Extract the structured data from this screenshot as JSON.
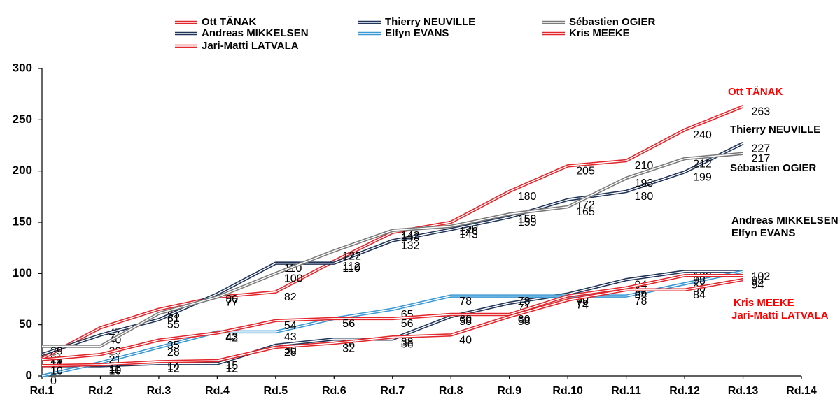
{
  "chart_data": {
    "type": "line",
    "categories": [
      "Rd.1",
      "Rd.2",
      "Rd.3",
      "Rd.4",
      "Rd.5",
      "Rd.6",
      "Rd.7",
      "Rd.8",
      "Rd.9",
      "Rd.10",
      "Rd.11",
      "Rd.12",
      "Rd.13",
      "Rd.14"
    ],
    "ylim": [
      0,
      300
    ],
    "yticks": [
      0,
      50,
      100,
      150,
      200,
      250,
      300
    ],
    "series": [
      {
        "name": "Ott TÄNAK",
        "color": "#e3262b",
        "values": [
          17,
          47,
          65,
          77,
          82,
          112,
          140,
          150,
          180,
          205,
          210,
          240,
          263,
          null
        ]
      },
      {
        "name": "Thierry NEUVILLE",
        "color": "#1f3458",
        "values": [
          21,
          40,
          55,
          80,
          110,
          110,
          132,
          143,
          155,
          172,
          180,
          199,
          227,
          null
        ]
      },
      {
        "name": "Sébastien OGIER",
        "color": "#7a7a7a",
        "values": [
          29,
          29,
          61,
          77,
          100,
          122,
          142,
          146,
          158,
          165,
          193,
          212,
          217,
          null
        ]
      },
      {
        "name": "Andreas MIKKELSEN",
        "color": "#1f3458",
        "values": [
          10,
          10,
          12,
          12,
          30,
          36,
          36,
          58,
          71,
          80,
          94,
          102,
          102,
          null
        ]
      },
      {
        "name": "Elfyn EVANS",
        "color": "#3a98d4",
        "values": [
          0,
          13,
          28,
          43,
          43,
          56,
          65,
          78,
          78,
          78,
          78,
          90,
          102,
          null
        ]
      },
      {
        "name": "Kris MEEKE",
        "color": "#e3262b",
        "values": [
          16,
          21,
          35,
          42,
          54,
          56,
          56,
          60,
          60,
          78,
          86,
          98,
          98,
          null
        ]
      },
      {
        "name": "Jari-Matti LATVALA",
        "color": "#e3262b",
        "values": [
          10,
          11,
          14,
          15,
          28,
          32,
          38,
          40,
          58,
          74,
          84,
          84,
          94,
          null
        ]
      }
    ]
  }
}
